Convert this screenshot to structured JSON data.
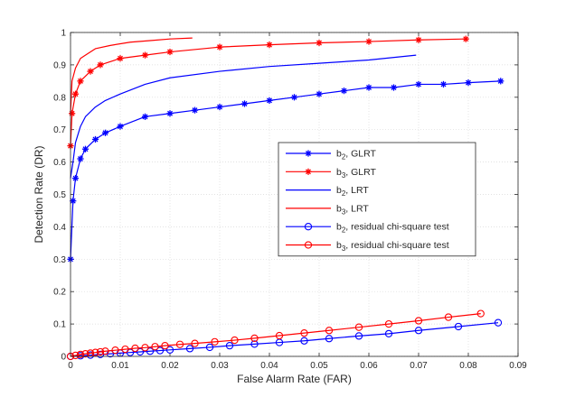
{
  "chart_data": {
    "type": "line",
    "xlabel": "False Alarm Rate (FAR)",
    "ylabel": "Detection Rate (DR)",
    "xlim": [
      0,
      0.09
    ],
    "ylim": [
      0,
      1
    ],
    "xticks": [
      0,
      0.01,
      0.02,
      0.03,
      0.04,
      0.05,
      0.06,
      0.07,
      0.08,
      0.09
    ],
    "xtick_labels": [
      "0",
      "0.01",
      "0.02",
      "0.03",
      "0.04",
      "0.05",
      "0.06",
      "0.07",
      "0.08",
      "0.09"
    ],
    "yticks": [
      0,
      0.1,
      0.2,
      0.3,
      0.4,
      0.5,
      0.6,
      0.7,
      0.8,
      0.9,
      1
    ],
    "ytick_labels": [
      "0",
      "0.1",
      "0.2",
      "0.3",
      "0.4",
      "0.5",
      "0.6",
      "0.7",
      "0.8",
      "0.9",
      "1"
    ],
    "grid": true,
    "legend_position": "center-right",
    "series": [
      {
        "name": "b2, GLRT",
        "label_base": "b",
        "label_sub": "2",
        "label_rest": ", GLRT",
        "color": "#0000ff",
        "marker": "asterisk",
        "x": [
          0,
          0.0005,
          0.001,
          0.002,
          0.003,
          0.005,
          0.007,
          0.01,
          0.015,
          0.02,
          0.025,
          0.03,
          0.035,
          0.04,
          0.045,
          0.05,
          0.055,
          0.06,
          0.065,
          0.07,
          0.075,
          0.08,
          0.0865
        ],
        "y": [
          0.3,
          0.48,
          0.55,
          0.61,
          0.64,
          0.67,
          0.69,
          0.71,
          0.74,
          0.75,
          0.76,
          0.77,
          0.78,
          0.79,
          0.8,
          0.81,
          0.82,
          0.83,
          0.83,
          0.84,
          0.84,
          0.845,
          0.85
        ]
      },
      {
        "name": "b3, GLRT",
        "label_base": "b",
        "label_sub": "3",
        "label_rest": ", GLRT",
        "color": "#ff0000",
        "marker": "asterisk",
        "x": [
          0,
          0.0003,
          0.001,
          0.002,
          0.004,
          0.006,
          0.01,
          0.015,
          0.02,
          0.03,
          0.04,
          0.05,
          0.06,
          0.07,
          0.0795
        ],
        "y": [
          0.65,
          0.75,
          0.81,
          0.85,
          0.88,
          0.9,
          0.92,
          0.93,
          0.94,
          0.955,
          0.962,
          0.968,
          0.972,
          0.977,
          0.98
        ]
      },
      {
        "name": "b2, LRT",
        "label_base": "b",
        "label_sub": "2",
        "label_rest": ", LRT",
        "color": "#0000ff",
        "marker": "none",
        "x": [
          0,
          0.0005,
          0.001,
          0.002,
          0.003,
          0.005,
          0.007,
          0.01,
          0.015,
          0.02,
          0.03,
          0.04,
          0.05,
          0.06,
          0.0695
        ],
        "y": [
          0.55,
          0.6,
          0.66,
          0.71,
          0.74,
          0.77,
          0.79,
          0.81,
          0.84,
          0.86,
          0.88,
          0.895,
          0.905,
          0.915,
          0.93
        ]
      },
      {
        "name": "b3, LRT",
        "label_base": "b",
        "label_sub": "3",
        "label_rest": ", LRT",
        "color": "#ff0000",
        "marker": "none",
        "x": [
          0,
          0.0003,
          0.001,
          0.002,
          0.003,
          0.005,
          0.008,
          0.012,
          0.016,
          0.02,
          0.0245
        ],
        "y": [
          0.75,
          0.85,
          0.89,
          0.92,
          0.93,
          0.95,
          0.96,
          0.97,
          0.975,
          0.98,
          0.983
        ]
      },
      {
        "name": "b2, residual chi-square test",
        "label_base": "b",
        "label_sub": "2",
        "label_rest": ", residual chi-square test",
        "color": "#0000ff",
        "marker": "circle",
        "x": [
          0,
          0.002,
          0.004,
          0.006,
          0.008,
          0.01,
          0.012,
          0.014,
          0.016,
          0.018,
          0.02,
          0.024,
          0.028,
          0.032,
          0.037,
          0.042,
          0.047,
          0.052,
          0.058,
          0.064,
          0.07,
          0.078,
          0.086
        ],
        "y": [
          0,
          0.002,
          0.004,
          0.006,
          0.008,
          0.01,
          0.012,
          0.014,
          0.016,
          0.018,
          0.02,
          0.024,
          0.028,
          0.033,
          0.038,
          0.043,
          0.048,
          0.055,
          0.063,
          0.07,
          0.08,
          0.092,
          0.104
        ]
      },
      {
        "name": "b3, residual chi-square test",
        "label_base": "b",
        "label_sub": "3",
        "label_rest": ", residual chi-square test",
        "color": "#ff0000",
        "marker": "circle",
        "x": [
          0,
          0.001,
          0.002,
          0.003,
          0.004,
          0.005,
          0.006,
          0.007,
          0.009,
          0.011,
          0.013,
          0.015,
          0.017,
          0.019,
          0.022,
          0.025,
          0.029,
          0.033,
          0.037,
          0.042,
          0.047,
          0.052,
          0.058,
          0.064,
          0.07,
          0.076,
          0.0825
        ],
        "y": [
          0,
          0.003,
          0.006,
          0.008,
          0.01,
          0.012,
          0.014,
          0.016,
          0.019,
          0.022,
          0.025,
          0.027,
          0.03,
          0.033,
          0.037,
          0.04,
          0.045,
          0.05,
          0.056,
          0.064,
          0.072,
          0.08,
          0.09,
          0.1,
          0.11,
          0.121,
          0.132
        ]
      }
    ]
  }
}
